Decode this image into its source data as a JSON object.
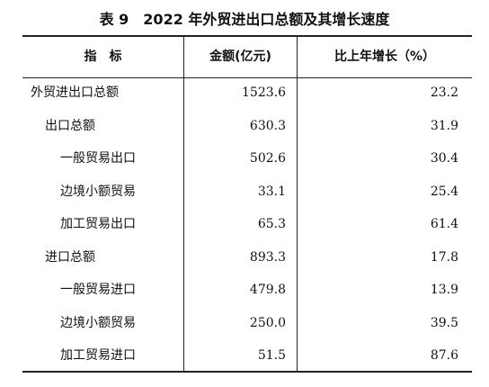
{
  "title": "表 9　2022 年外贸进出口总额及其增长速度",
  "table": {
    "header": [
      "指　标",
      "金额(亿元)",
      "比上年增长（%）"
    ],
    "rows": [
      [
        "外贸进出口总额",
        "1523.6",
        "23.2"
      ],
      [
        "出口总额",
        "630.3",
        "31.9"
      ],
      [
        "一般贸易出口",
        "502.6",
        "30.4"
      ],
      [
        "边境小额贸易",
        "33.1",
        "25.4"
      ],
      [
        "加工贸易出口",
        "65.3",
        "61.4"
      ],
      [
        "进口总额",
        "893.3",
        "17.8"
      ],
      [
        "一般贸易进口",
        "479.8",
        "13.9"
      ],
      [
        "边境小额贸易",
        "250.0",
        "39.5"
      ],
      [
        "加工贸易进口",
        "51.5",
        "87.6"
      ]
    ]
  }
}
